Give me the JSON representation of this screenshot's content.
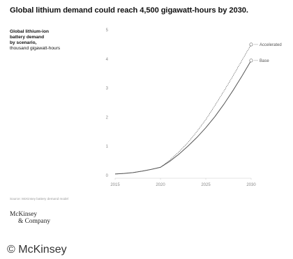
{
  "title": "Global lithium demand could reach 4,500 gigawatt-hours by 2030.",
  "description": {
    "lines_bold": [
      "Global lithium-ion",
      "battery demand",
      "by scenario,"
    ],
    "unit": "thousand gigawatt-hours"
  },
  "source": "Source: McKinsey battery demand model",
  "logo": {
    "line1": "McKinsey",
    "line2": "& Company"
  },
  "copyright": "© McKinsey",
  "colors": {
    "base_line": "#555555",
    "accelerated_line": "#555555",
    "axis": "#cccccc",
    "text": "#111111"
  },
  "chart_data": {
    "type": "line",
    "x": [
      2015,
      2016,
      2017,
      2018,
      2019,
      2020,
      2021,
      2022,
      2023,
      2024,
      2025,
      2026,
      2027,
      2028,
      2029,
      2030
    ],
    "x_ticks": [
      2015,
      2020,
      2025,
      2030
    ],
    "y_ticks": [
      0,
      1,
      2,
      3,
      4,
      5
    ],
    "xlim": [
      2015,
      2030
    ],
    "ylim": [
      0,
      5
    ],
    "grid": false,
    "legend": "end-of-line labels",
    "series": [
      {
        "name": "Accelerated",
        "style": "dotted",
        "values": [
          0.05,
          0.07,
          0.1,
          0.15,
          0.21,
          0.28,
          0.52,
          0.8,
          1.12,
          1.5,
          1.92,
          2.4,
          2.9,
          3.42,
          3.96,
          4.5
        ]
      },
      {
        "name": "Base",
        "style": "solid",
        "values": [
          0.05,
          0.07,
          0.1,
          0.15,
          0.21,
          0.28,
          0.48,
          0.72,
          1.0,
          1.3,
          1.64,
          2.02,
          2.45,
          2.92,
          3.42,
          3.95
        ]
      }
    ]
  }
}
